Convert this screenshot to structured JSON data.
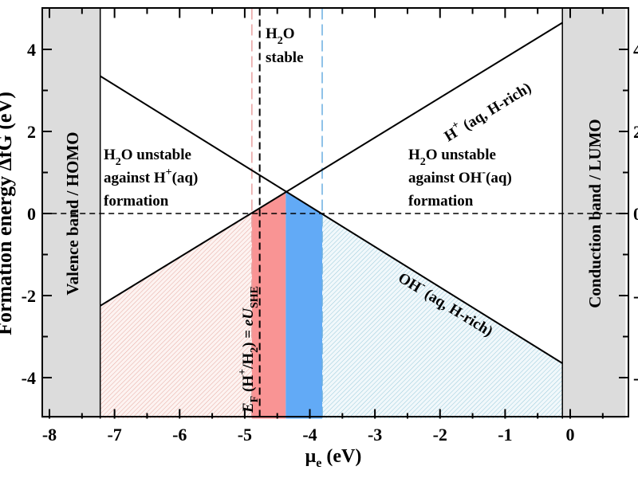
{
  "chart_data": {
    "type": "line",
    "title": "",
    "xlabel": "μe (eV)",
    "xlabel_main": "μ",
    "xlabel_sub": "e",
    "xlabel_unit": " (eV)",
    "ylabel": "Formation energy ΔfG (eV)",
    "xlim": [
      -8.12,
      0.85
    ],
    "ylim": [
      -5,
      5
    ],
    "x_ticks": [
      -8,
      -7,
      -6,
      -5,
      -4,
      -3,
      -2,
      -1,
      0
    ],
    "x_tick_labels": [
      "-8",
      "-7",
      "-6",
      "-5",
      "-4",
      "-3",
      "-2",
      "-1",
      "0"
    ],
    "y_ticks": [
      -4,
      -2,
      0,
      2,
      4
    ],
    "y_tick_labels": [
      "-4",
      "-2",
      "0",
      "2",
      "4"
    ],
    "grid": false,
    "series": [
      {
        "name": "H+ (aq, H-rich)",
        "x": [
          -7.22,
          -0.12
        ],
        "y": [
          -2.25,
          4.65
        ],
        "color": "#000000"
      },
      {
        "name": "OH- (aq, H-rich)",
        "x": [
          -7.22,
          -0.12
        ],
        "y": [
          3.35,
          -3.65
        ],
        "color": "#000000"
      }
    ],
    "regions": {
      "valence_band": {
        "x": [
          -8.12,
          -7.22
        ],
        "label": "Valence band / HOMO",
        "color": "#dcdcdc"
      },
      "conduction_band": {
        "x": [
          -0.12,
          0.85
        ],
        "label": "Conduction band / LUMO",
        "color": "#dcdcdc"
      },
      "red_fill": {
        "x": [
          -4.89,
          -4.37
        ],
        "color": "#f99494"
      },
      "blue_fill": {
        "x": [
          -4.37,
          -3.81
        ],
        "color": "#62aaf6"
      },
      "pink_hatch": {
        "x": [
          -7.22,
          -4.89
        ],
        "color": "#e8b0a8"
      },
      "blue_hatch": {
        "x": [
          -3.81,
          -0.12
        ],
        "color": "#9fcfe0"
      }
    },
    "reference_lines": {
      "zero_energy": 0,
      "ef_she": {
        "x": -4.77,
        "color": "#000000"
      },
      "pink_dashed": {
        "x": -4.89,
        "color": "#e8a0a0"
      },
      "blue_dashed": {
        "x": -3.81,
        "color": "#6aaee0"
      }
    },
    "annotations": {
      "stable_1": "H",
      "stable_1_sub": "2",
      "stable_1_b": "O",
      "stable_2": "stable",
      "left_1a": "H",
      "left_1_sub": "2",
      "left_1b": "O unstable",
      "left_2a": "against H",
      "left_2_sup": "+",
      "left_2b": "(aq)",
      "left_3": "formation",
      "right_1a": "H",
      "right_1_sub": "2",
      "right_1b": "O unstable",
      "right_2a": "against OH",
      "right_2_sup": "-",
      "right_2b": "(aq)",
      "right_3": "formation",
      "hplus_a": "H",
      "hplus_sup": "+",
      "hplus_b": " (aq, H-rich)",
      "ohminus_a": "OH",
      "ohminus_sup": "-",
      "ohminus_b": " (aq, H-rich)",
      "ef_E": "E",
      "ef_F": "F",
      "ef_mid1": " (H",
      "ef_sup": "+",
      "ef_mid2": "/H",
      "ef_sub2": "2",
      "ef_mid3": ") = ",
      "ef_e": "eU",
      "ef_she": "SHE"
    }
  }
}
